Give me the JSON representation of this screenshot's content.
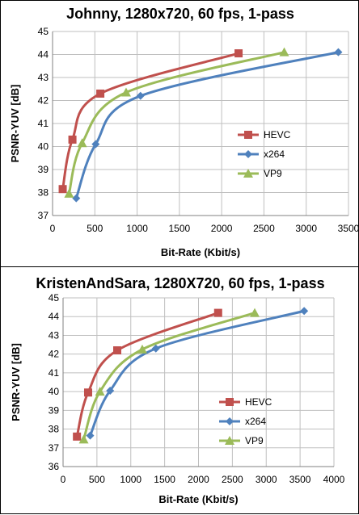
{
  "chart_data": [
    {
      "type": "line",
      "title": "Johnny, 1280x720, 60 fps, 1-pass",
      "xlabel": "Bit-Rate (Kbit/s)",
      "ylabel": "PSNR-YUV [dB]",
      "xlim": [
        0,
        3500
      ],
      "ylim": [
        37,
        45
      ],
      "xticks": [
        0,
        500,
        1000,
        1500,
        2000,
        2500,
        3000,
        3500
      ],
      "yticks": [
        37,
        38,
        39,
        40,
        41,
        42,
        43,
        44,
        45
      ],
      "grid": true,
      "legend_position": "right",
      "series": [
        {
          "name": "HEVC",
          "color": "#c0504d",
          "marker": "square",
          "points": [
            [
              120,
              38.15
            ],
            [
              235,
              40.3
            ],
            [
              565,
              42.3
            ],
            [
              2200,
              44.05
            ]
          ]
        },
        {
          "name": "x264",
          "color": "#4f81bd",
          "marker": "diamond",
          "points": [
            [
              280,
              37.75
            ],
            [
              510,
              40.1
            ],
            [
              1040,
              42.2
            ],
            [
              3380,
              44.1
            ]
          ]
        },
        {
          "name": "VP9",
          "color": "#9bbb59",
          "marker": "triangle",
          "points": [
            [
              195,
              37.95
            ],
            [
              350,
              40.15
            ],
            [
              870,
              42.35
            ],
            [
              2740,
              44.1
            ]
          ]
        }
      ]
    },
    {
      "type": "line",
      "title": "KristenAndSara, 1280X720, 60 fps, 1-pass",
      "xlabel": "Bit-Rate (Kbit/s)",
      "ylabel": "PSNR-YUV [dB]",
      "xlim": [
        0,
        4000
      ],
      "ylim": [
        36,
        45
      ],
      "xticks": [
        0,
        500,
        1000,
        1500,
        2000,
        2500,
        3000,
        3500,
        4000
      ],
      "yticks": [
        36,
        37,
        38,
        39,
        40,
        41,
        42,
        43,
        44,
        45
      ],
      "grid": true,
      "legend_position": "right",
      "series": [
        {
          "name": "HEVC",
          "color": "#c0504d",
          "marker": "square",
          "points": [
            [
              205,
              37.6
            ],
            [
              370,
              39.95
            ],
            [
              800,
              42.2
            ],
            [
              2290,
              44.2
            ]
          ]
        },
        {
          "name": "x264",
          "color": "#4f81bd",
          "marker": "diamond",
          "points": [
            [
              400,
              37.65
            ],
            [
              695,
              40.05
            ],
            [
              1370,
              42.3
            ],
            [
              3560,
              44.3
            ]
          ]
        },
        {
          "name": "VP9",
          "color": "#9bbb59",
          "marker": "triangle",
          "points": [
            [
              305,
              37.45
            ],
            [
              545,
              40.0
            ],
            [
              1170,
              42.25
            ],
            [
              2830,
              44.2
            ]
          ]
        }
      ]
    }
  ]
}
